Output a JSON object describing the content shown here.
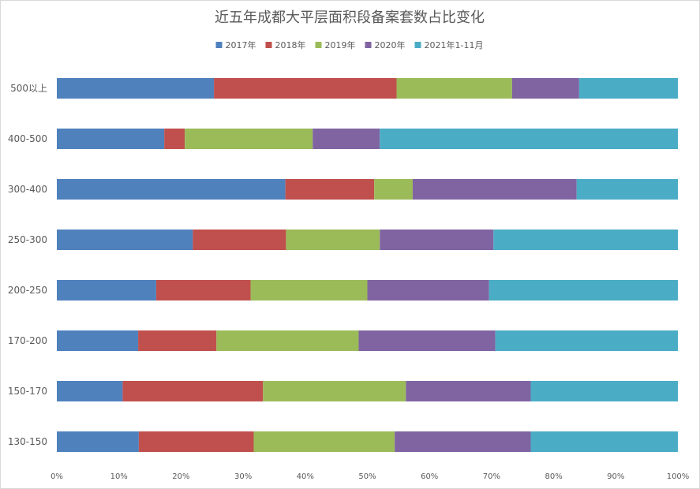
{
  "chart_data": {
    "type": "bar",
    "orientation": "horizontal",
    "stacked": "percent",
    "title": "近五年成都大平层面积段备案套数占比变化",
    "legend_position": "top",
    "categories": [
      "500以上",
      "400-500",
      "300-400",
      "250-300",
      "200-250",
      "170-200",
      "150-170",
      "130-150"
    ],
    "series": [
      {
        "name": "2017年",
        "color": "#4f81bd",
        "values": [
          25.3,
          17.3,
          36.8,
          21.9,
          16.0,
          13.1,
          10.6,
          13.2
        ]
      },
      {
        "name": "2018年",
        "color": "#c0504d",
        "values": [
          29.4,
          3.3,
          14.3,
          15.0,
          15.2,
          12.6,
          22.6,
          18.5
        ]
      },
      {
        "name": "2019年",
        "color": "#9bbb59",
        "values": [
          18.6,
          20.6,
          6.2,
          15.1,
          18.8,
          22.9,
          23.0,
          22.7
        ]
      },
      {
        "name": "2020年",
        "color": "#8064a2",
        "values": [
          10.8,
          10.8,
          26.4,
          18.3,
          19.6,
          22.0,
          20.1,
          21.9
        ]
      },
      {
        "name": "2021年1-11月",
        "color": "#4bacc6",
        "values": [
          15.9,
          48.0,
          16.3,
          29.7,
          30.4,
          29.4,
          23.7,
          23.7
        ]
      }
    ],
    "x_ticks": [
      "0%",
      "10%",
      "20%",
      "30%",
      "40%",
      "50%",
      "60%",
      "70%",
      "80%",
      "90%",
      "100%"
    ],
    "xlim": [
      0,
      100
    ],
    "grid": false
  }
}
